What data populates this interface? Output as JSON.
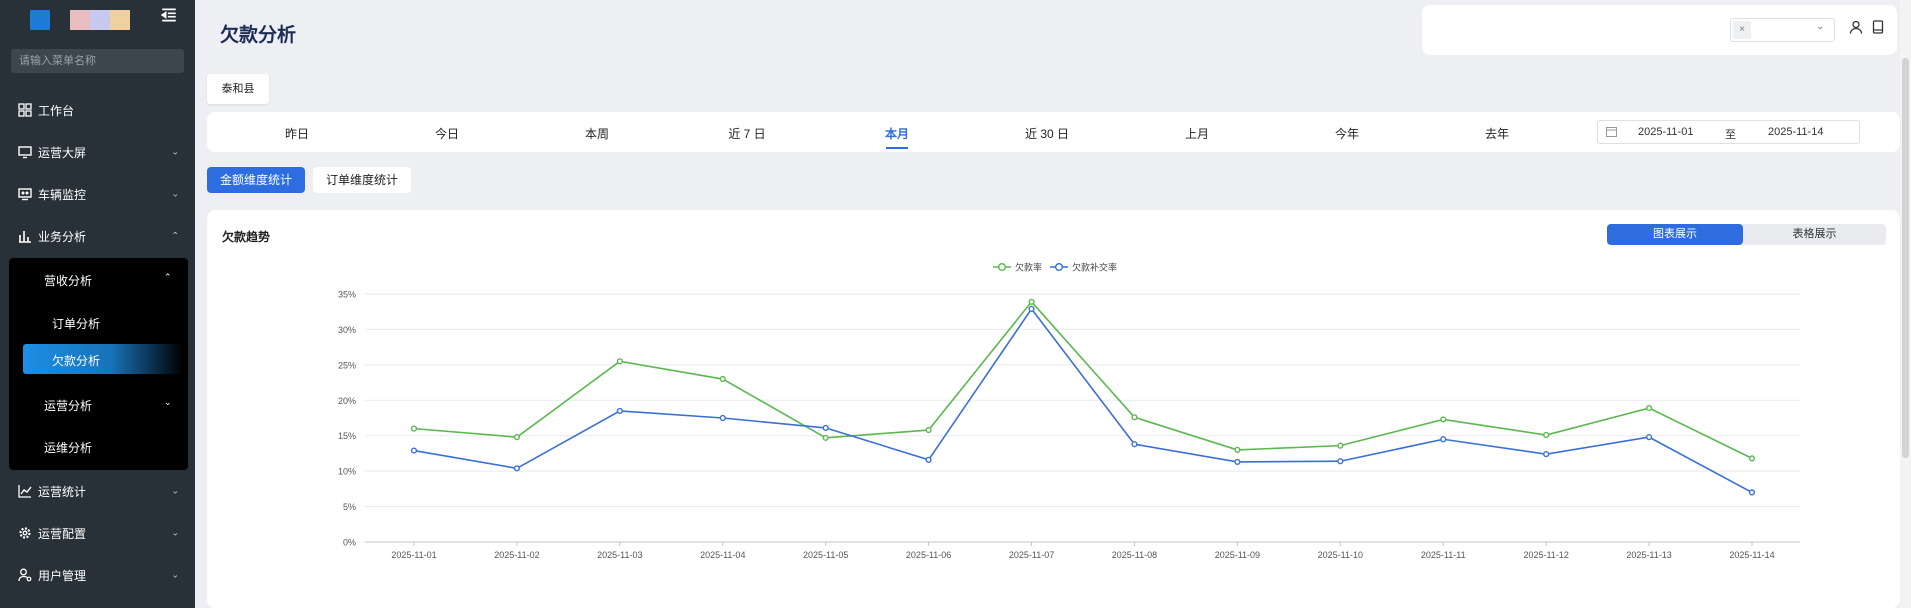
{
  "sidebar": {
    "search_placeholder": "请输入菜单名称",
    "items": [
      {
        "label": "工作台",
        "icon": "grid-icon"
      },
      {
        "label": "运营大屏",
        "icon": "monitor-icon"
      },
      {
        "label": "车辆监控",
        "icon": "vehicle-monitor-icon"
      },
      {
        "label": "业务分析",
        "icon": "bar-chart-icon"
      },
      {
        "label": "运营统计",
        "icon": "line-chart-icon"
      },
      {
        "label": "运营配置",
        "icon": "gear-icon"
      },
      {
        "label": "用户管理",
        "icon": "user-gear-icon"
      }
    ],
    "submenu": {
      "group_label": "营收分析",
      "children": [
        "订单分析",
        "欠款分析"
      ],
      "ops_label": "运营分析",
      "maint_label": "运维分析"
    }
  },
  "header": {
    "title": "欠款分析",
    "clear_icon": "×"
  },
  "county_tag": "泰和县",
  "date_tabs": [
    "昨日",
    "今日",
    "本周",
    "近 7 日",
    "本月",
    "近 30 日",
    "上月",
    "今年",
    "去年"
  ],
  "active_date_tab": "本月",
  "date_range": {
    "start": "2025-11-01",
    "separator": "至",
    "end": "2025-11-14"
  },
  "stat_tabs": {
    "amount": "金额维度统计",
    "order": "订单维度统计"
  },
  "card": {
    "title": "欠款趋势",
    "view_chart": "图表展示",
    "view_table": "表格展示"
  },
  "colors": {
    "accent": "#2d6ddf",
    "series_debt": "#5bb84f",
    "series_repay": "#3a6fd8"
  },
  "chart_data": {
    "type": "line",
    "x": [
      "2025-11-01",
      "2025-11-02",
      "2025-11-03",
      "2025-11-04",
      "2025-11-05",
      "2025-11-06",
      "2025-11-07",
      "2025-11-08",
      "2025-11-09",
      "2025-11-10",
      "2025-11-11",
      "2025-11-12",
      "2025-11-13",
      "2025-11-14"
    ],
    "series": [
      {
        "name": "欠款率",
        "color": "#5bb84f",
        "values": [
          16.0,
          14.8,
          25.5,
          23.0,
          14.7,
          15.8,
          33.9,
          17.6,
          13.0,
          13.6,
          17.3,
          15.1,
          18.9,
          11.8
        ]
      },
      {
        "name": "欠款补交率",
        "color": "#3a6fd8",
        "values": [
          12.9,
          10.4,
          18.5,
          17.5,
          16.1,
          11.6,
          32.9,
          13.8,
          11.3,
          11.4,
          14.5,
          12.4,
          14.8,
          7.0
        ]
      }
    ],
    "ylim": [
      0,
      35
    ],
    "yticks": [
      "0%",
      "5%",
      "10%",
      "15%",
      "20%",
      "25%",
      "30%",
      "35%"
    ],
    "legend": "top-center",
    "grid": true
  }
}
